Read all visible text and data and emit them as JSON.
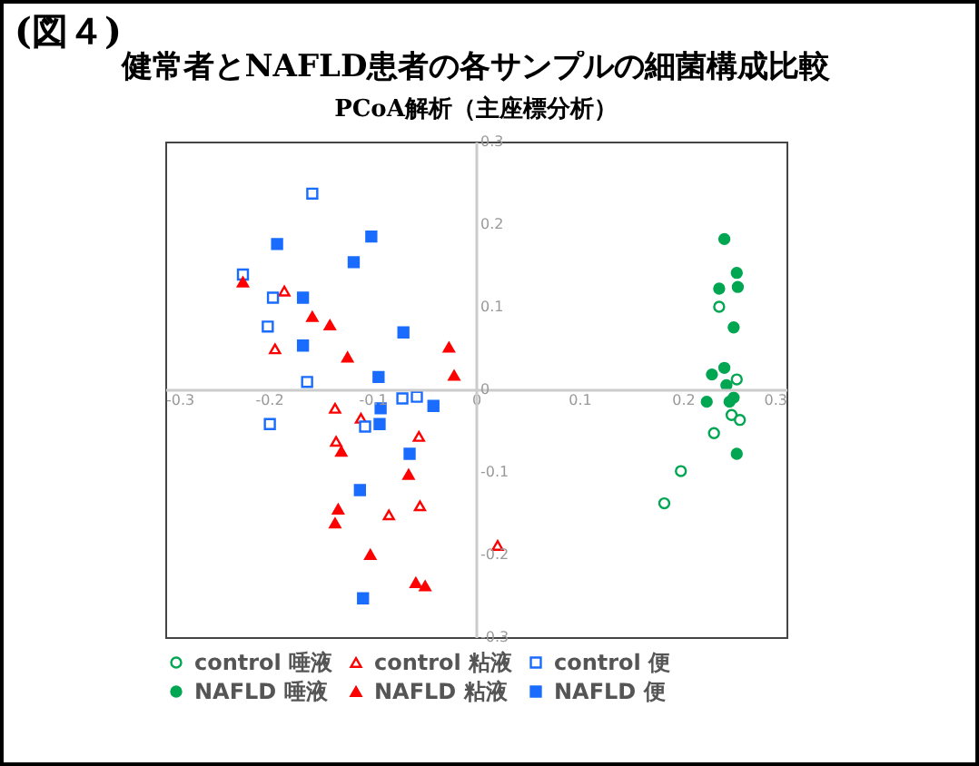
{
  "chart_data": {
    "type": "scatter",
    "title": "健常者とNAFLD患者の各サンプルの細菌構成比較",
    "subtitle": "PCoA解析（主座標分析）",
    "annotations": [
      "(図４)"
    ],
    "xlim": [
      -0.3,
      0.3
    ],
    "ylim": [
      -0.3,
      0.3
    ],
    "xticks": [
      -0.3,
      -0.2,
      -0.1,
      0,
      0.1,
      0.2,
      0.3
    ],
    "yticks": [
      -0.3,
      -0.2,
      -0.1,
      0,
      0.1,
      0.2,
      0.3
    ],
    "grid": false,
    "legend": "bottom",
    "series": [
      {
        "name": "control 唾液",
        "color": "#00a651",
        "marker": "circle-open",
        "x": [
          0.235,
          0.252,
          0.247,
          0.255,
          0.23,
          0.198,
          0.182
        ],
        "values": [
          0.1,
          0.012,
          -0.031,
          -0.037,
          -0.053,
          -0.099,
          -0.138
        ]
      },
      {
        "name": "control 粘液",
        "color": "#ff0000",
        "marker": "triangle-open",
        "x": [
          -0.185,
          -0.194,
          -0.136,
          -0.111,
          -0.135,
          -0.055,
          -0.054,
          -0.084,
          0.021
        ],
        "values": [
          0.119,
          0.049,
          -0.023,
          -0.035,
          -0.063,
          -0.057,
          -0.141,
          -0.152,
          -0.189
        ]
      },
      {
        "name": "control 便",
        "color": "#1a6cff",
        "marker": "square-open",
        "x": [
          -0.158,
          -0.225,
          -0.196,
          -0.201,
          -0.163,
          -0.199,
          -0.071,
          -0.057,
          -0.107
        ],
        "values": [
          0.237,
          0.139,
          0.111,
          0.076,
          0.009,
          -0.042,
          -0.011,
          -0.009,
          -0.045
        ]
      },
      {
        "name": "NAFLD 唾液",
        "color": "#00a651",
        "marker": "circle",
        "x": [
          0.24,
          0.252,
          0.235,
          0.253,
          0.249,
          0.24,
          0.228,
          0.242,
          0.223,
          0.249,
          0.245,
          0.252
        ],
        "values": [
          0.182,
          0.141,
          0.122,
          0.124,
          0.075,
          0.026,
          0.018,
          0.005,
          -0.015,
          -0.01,
          -0.015,
          -0.078
        ]
      },
      {
        "name": "NAFLD 粘液",
        "color": "#ff0000",
        "marker": "triangle",
        "x": [
          -0.225,
          -0.158,
          -0.141,
          -0.124,
          -0.026,
          -0.021,
          -0.13,
          -0.065,
          -0.133,
          -0.136,
          -0.102,
          -0.058,
          -0.049
        ],
        "values": [
          0.13,
          0.088,
          0.078,
          0.039,
          0.051,
          0.017,
          -0.075,
          -0.103,
          -0.145,
          -0.162,
          -0.2,
          -0.234,
          -0.238
        ]
      },
      {
        "name": "NAFLD 便",
        "color": "#1a6cff",
        "marker": "square",
        "x": [
          -0.192,
          -0.101,
          -0.118,
          -0.167,
          -0.07,
          -0.167,
          -0.094,
          -0.092,
          -0.093,
          -0.041,
          -0.064,
          -0.112,
          -0.109
        ],
        "values": [
          0.176,
          0.185,
          0.154,
          0.111,
          0.069,
          0.053,
          0.015,
          -0.023,
          -0.042,
          -0.02,
          -0.078,
          -0.122,
          -0.253
        ]
      }
    ]
  }
}
